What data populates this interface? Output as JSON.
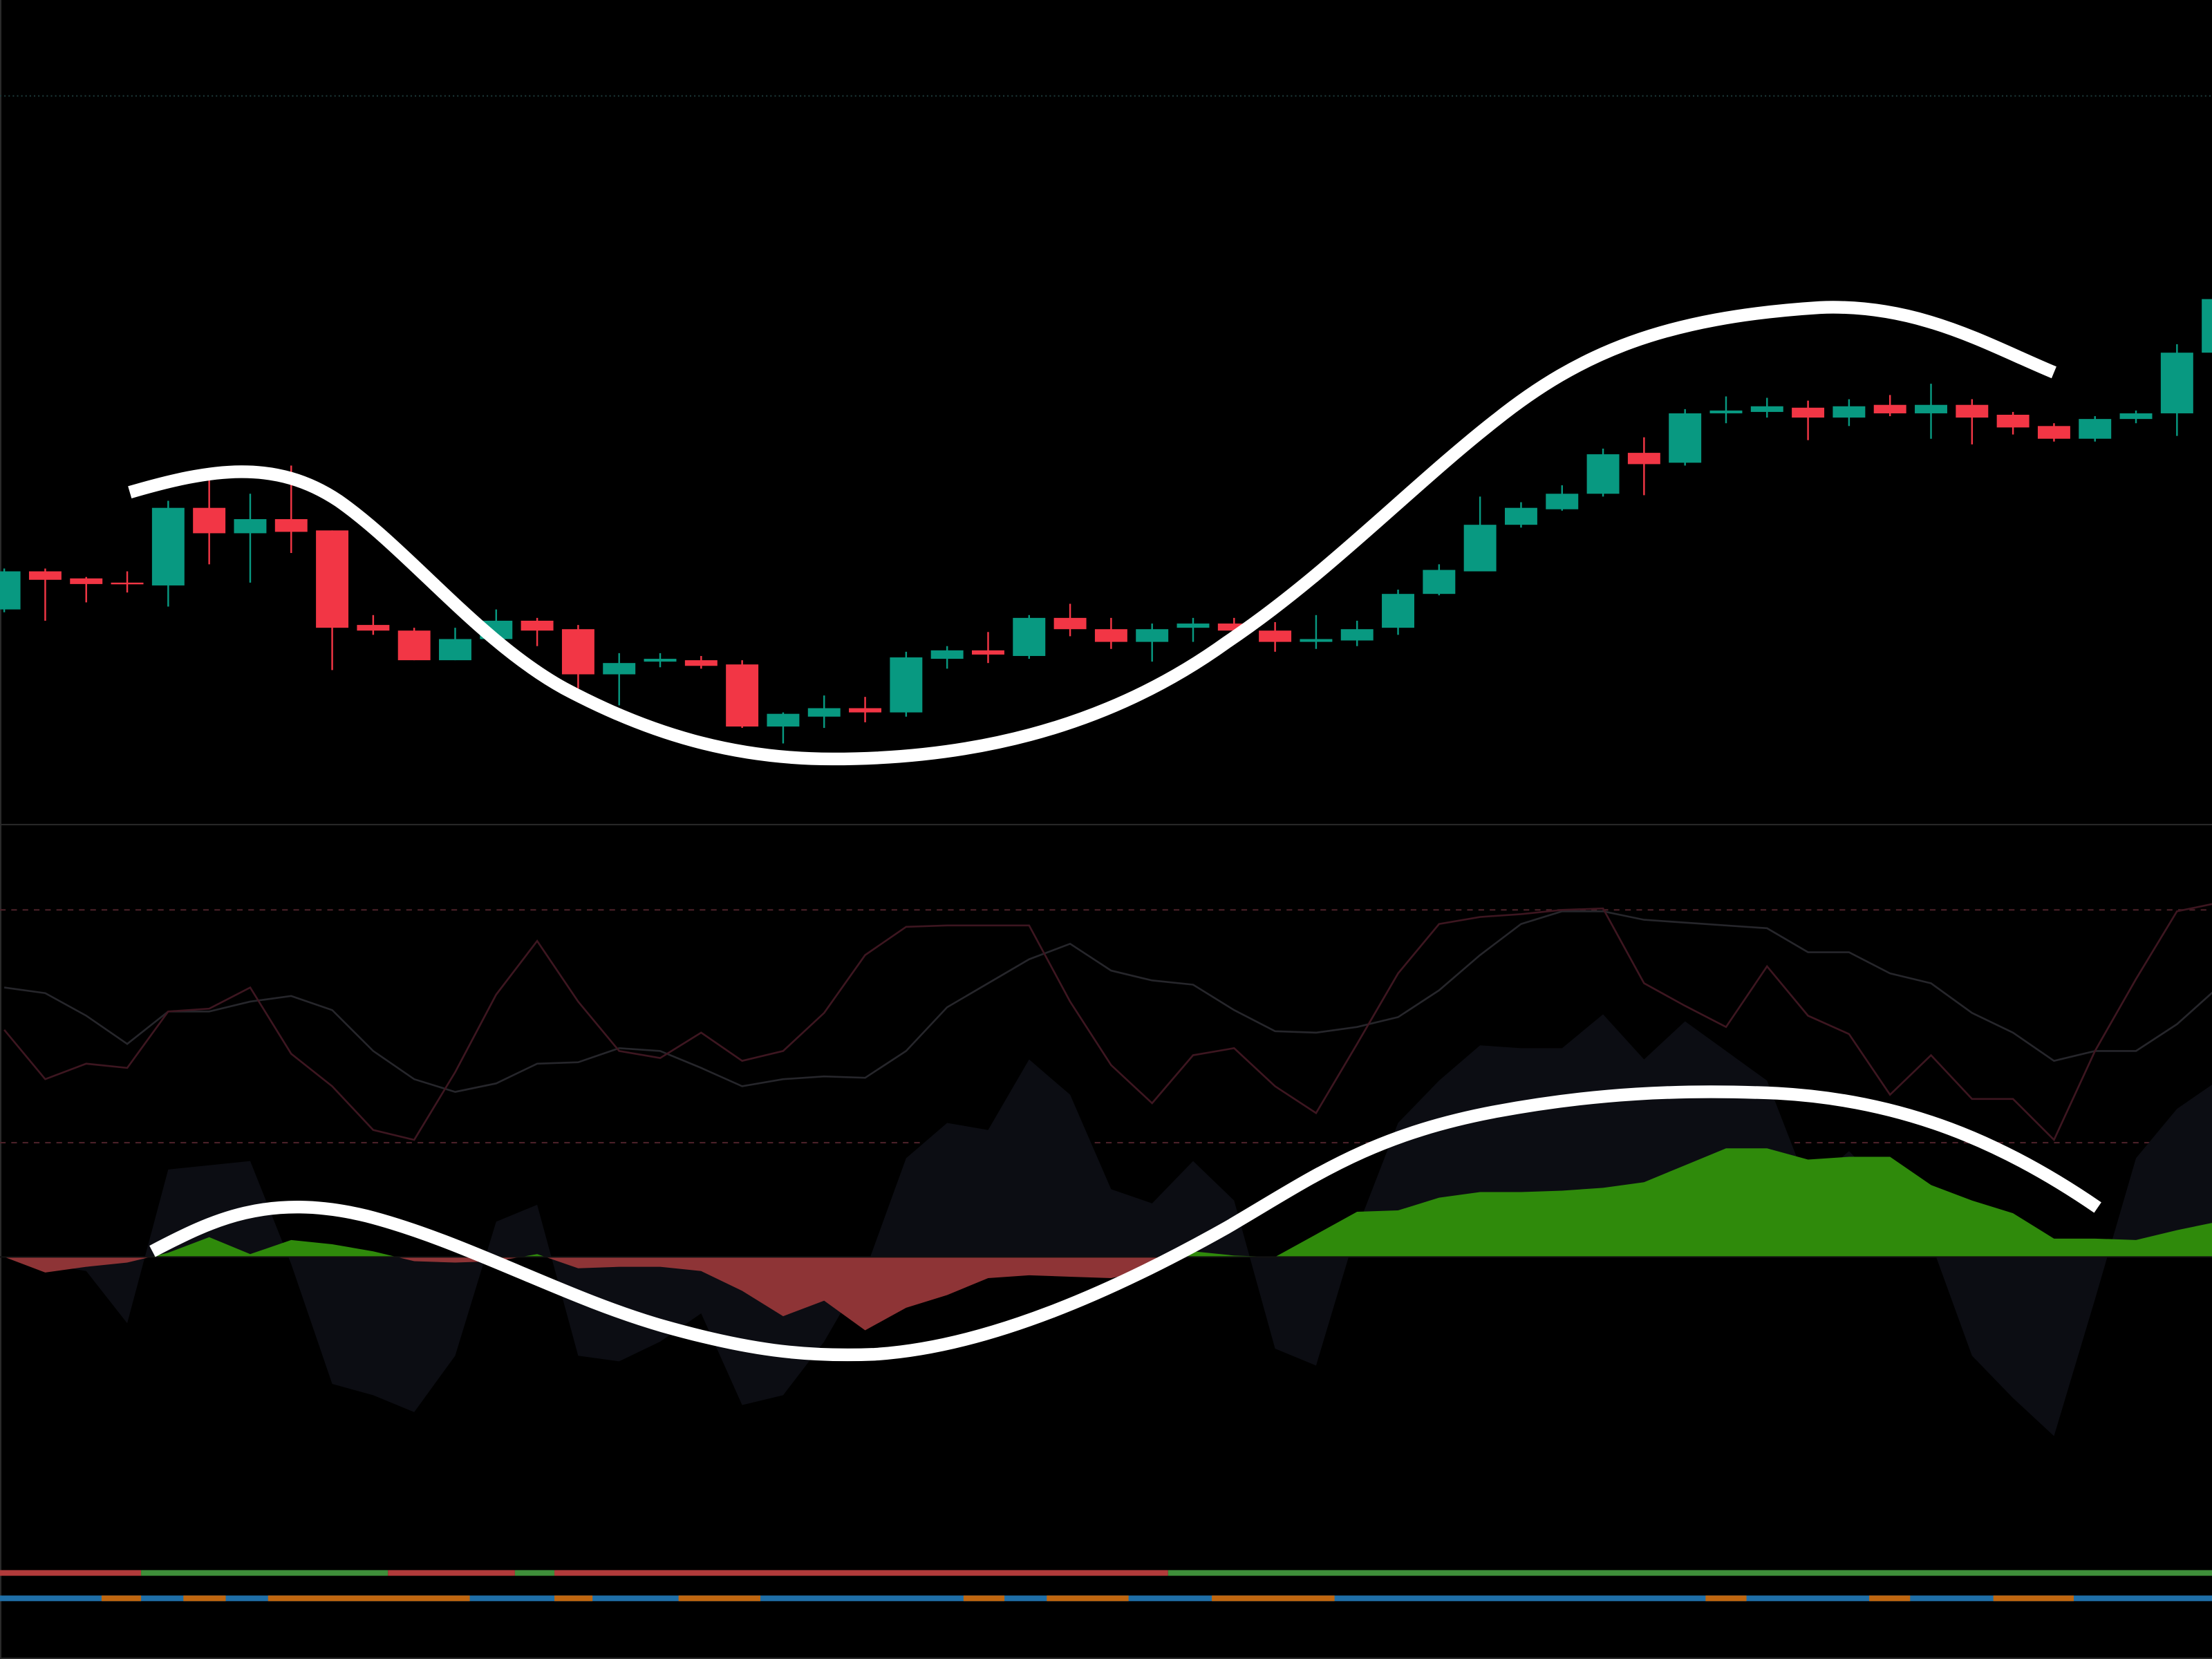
{
  "chart_data": [
    {
      "type": "candlestick",
      "up_color": "#089981",
      "down_color": "#f23645",
      "ylim": [
        16,
        600
      ],
      "hlines": [
        532
      ],
      "open": [
        168,
        195,
        190,
        187,
        185,
        240,
        222,
        232,
        224,
        157,
        153,
        132,
        147,
        160,
        154,
        122,
        131,
        132,
        129,
        85,
        92,
        98,
        95,
        133,
        139,
        135,
        162,
        154,
        145,
        155,
        158,
        153,
        145,
        146,
        155,
        179,
        195,
        228,
        239,
        250,
        279,
        272,
        307,
        308,
        311,
        304,
        313,
        307,
        313,
        306,
        298,
        289,
        303,
        307,
        350
      ],
      "high": [
        197,
        197,
        191,
        195,
        245,
        260,
        250,
        270,
        224,
        164,
        155,
        155,
        168,
        162,
        157,
        137,
        137,
        135,
        132,
        95,
        107,
        106,
        138,
        142,
        152,
        164,
        172,
        162,
        158,
        162,
        162,
        159,
        164,
        160,
        182,
        200,
        248,
        244,
        256,
        282,
        290,
        310,
        319,
        318,
        316,
        317,
        320,
        328,
        317,
        308,
        300,
        305,
        309,
        356,
        392
      ],
      "low": [
        166,
        160,
        173,
        180,
        170,
        200,
        187,
        208,
        125,
        150,
        132,
        132,
        145,
        142,
        112,
        100,
        127,
        126,
        84,
        73,
        84,
        88,
        92,
        126,
        130,
        133,
        149,
        140,
        131,
        145,
        148,
        138,
        140,
        142,
        150,
        178,
        195,
        226,
        238,
        248,
        249,
        270,
        300,
        304,
        288,
        298,
        305,
        289,
        285,
        292,
        287,
        287,
        300,
        291,
        346
      ],
      "close": [
        195,
        189,
        186,
        186,
        240,
        222,
        232,
        223,
        155,
        153,
        132,
        147,
        160,
        153,
        122,
        130,
        133,
        128,
        85,
        94,
        98,
        95,
        134,
        139,
        136,
        162,
        154,
        145,
        154,
        158,
        153,
        145,
        147,
        154,
        179,
        196,
        228,
        240,
        250,
        278,
        271,
        307,
        309,
        312,
        304,
        312,
        307,
        313,
        304,
        297,
        289,
        303,
        307,
        350,
        388
      ]
    },
    {
      "type": "area",
      "ylim": [
        -214,
        306
      ],
      "levels": [
        246,
        81
      ],
      "series": [
        {
          "style": "area",
          "color": "#0c0d13",
          "values": [
            0,
            -5,
            -10,
            -47,
            62,
            65,
            68,
            -5,
            -90,
            -98,
            -110,
            -70,
            25,
            37,
            -70,
            -74,
            -60,
            -40,
            -105,
            -98,
            -60,
            -10,
            70,
            95,
            90,
            140,
            115,
            48,
            38,
            68,
            40,
            -65,
            -77,
            20,
            95,
            125,
            150,
            148,
            148,
            172,
            140,
            167,
            146,
            125,
            50,
            75,
            45,
            10,
            -70,
            -100,
            -127,
            -30,
            70,
            105,
            125
          ]
        },
        {
          "style": "area",
          "color": "#2f8a0b",
          "negative_color": "#8e3436",
          "values": [
            0,
            -11,
            -7,
            -4,
            3,
            14,
            2,
            12,
            9,
            4,
            -3,
            -4,
            -3,
            2,
            -8,
            -7,
            -7,
            -10,
            -24,
            -42,
            -31,
            -52,
            -36,
            -27,
            -15,
            -13,
            -14,
            -15,
            -9,
            4,
            1,
            0,
            16,
            32,
            33,
            42,
            46,
            46,
            47,
            49,
            53,
            65,
            77,
            77,
            69,
            71,
            71,
            51,
            40,
            31,
            13,
            13,
            12,
            19,
            25
          ]
        },
        {
          "style": "line",
          "color": "#26262b",
          "values": [
            191,
            187,
            171,
            151,
            174,
            174,
            181,
            185,
            175,
            146,
            126,
            117,
            123,
            137,
            138,
            148,
            146,
            134,
            121,
            126,
            128,
            127,
            146,
            177,
            194,
            211,
            222,
            203,
            196,
            193,
            175,
            160,
            159,
            163,
            170,
            189,
            214,
            236,
            245,
            245,
            239,
            237,
            235,
            233,
            216,
            216,
            201,
            194,
            173,
            159,
            139,
            146,
            146,
            165,
            191
          ]
        },
        {
          "style": "line",
          "color": "#3d1620",
          "values": [
            161,
            126,
            137,
            134,
            174,
            176,
            191,
            144,
            121,
            90,
            83,
            131,
            186,
            224,
            181,
            146,
            141,
            159,
            139,
            146,
            173,
            214,
            234,
            235,
            235,
            235,
            181,
            136,
            109,
            143,
            148,
            121,
            102,
            151,
            201,
            236,
            241,
            243,
            246,
            247,
            194,
            178,
            163,
            206,
            171,
            158,
            115,
            143,
            112,
            112,
            83,
            146,
            197,
            245,
            251
          ]
        }
      ]
    }
  ]
}
